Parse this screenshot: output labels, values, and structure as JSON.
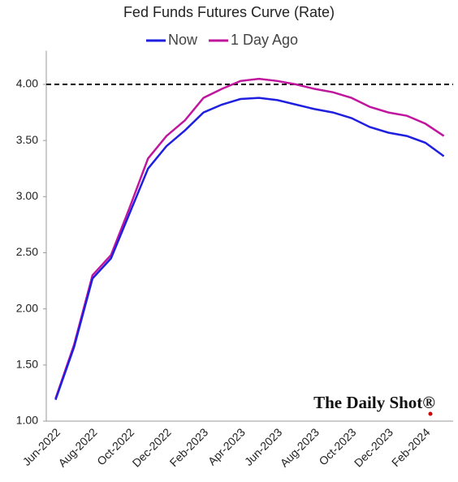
{
  "chart_data": {
    "type": "line",
    "title": "Fed Funds Futures Curve (Rate)",
    "categories": [
      "Jun-2022",
      null,
      "Aug-2022",
      null,
      "Oct-2022",
      null,
      "Dec-2022",
      null,
      "Feb-2023",
      null,
      "Apr-2023",
      null,
      "Jun-2023",
      null,
      "Aug-2023",
      null,
      "Oct-2023",
      null,
      "Dec-2023",
      null,
      "Feb-2024",
      null
    ],
    "series": [
      {
        "name": "Now",
        "color": "#1f1fe0",
        "values": [
          1.19,
          1.66,
          2.27,
          2.45,
          2.85,
          3.25,
          3.45,
          3.59,
          3.75,
          3.82,
          3.87,
          3.88,
          3.86,
          3.82,
          3.78,
          3.75,
          3.7,
          3.62,
          3.57,
          3.54,
          3.48,
          3.36
        ]
      },
      {
        "name": "1 Day Ago",
        "color": "#c0169e",
        "values": [
          1.2,
          1.68,
          2.3,
          2.48,
          2.9,
          3.34,
          3.54,
          3.68,
          3.88,
          3.96,
          4.03,
          4.05,
          4.03,
          4.0,
          3.96,
          3.93,
          3.88,
          3.8,
          3.75,
          3.72,
          3.65,
          3.54
        ]
      }
    ],
    "ylim": [
      1,
      4.3
    ],
    "yticks": [
      {
        "value": 1,
        "label": "1.00"
      },
      {
        "value": 1.5,
        "label": "1.50"
      },
      {
        "value": 2,
        "label": "2.00"
      },
      {
        "value": 2.5,
        "label": "2.50"
      },
      {
        "value": 3,
        "label": "3.00"
      },
      {
        "value": 3.5,
        "label": "3.50"
      },
      {
        "value": 4,
        "label": "4.00"
      }
    ],
    "hline": 4,
    "grid": false,
    "legend": "top",
    "watermark": "The Daily Shot®"
  }
}
